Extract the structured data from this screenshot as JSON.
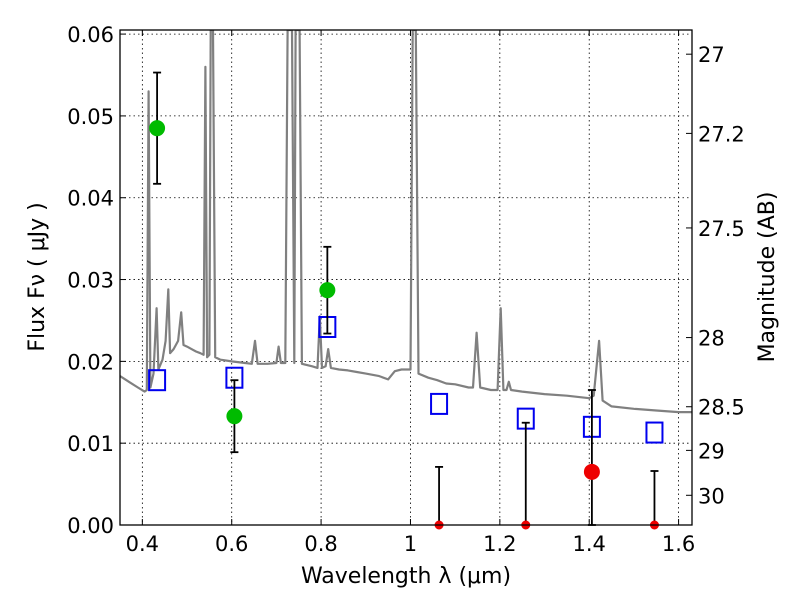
{
  "chart_data": {
    "type": "scatter",
    "title": "",
    "xlabel": "Wavelength  λ (μm)",
    "ylabel": "Flux  Fν  ( μJy )",
    "ylabel_right": "Magnitude (AB)",
    "xlim": [
      0.35,
      1.63
    ],
    "ylim": [
      0,
      0.0605
    ],
    "grid": true,
    "x_ticks": [
      {
        "value": 0.4,
        "label": "0.4"
      },
      {
        "value": 0.6,
        "label": "0.6"
      },
      {
        "value": 0.8,
        "label": "0.8"
      },
      {
        "value": 1.0,
        "label": "1"
      },
      {
        "value": 1.2,
        "label": "1.2"
      },
      {
        "value": 1.4,
        "label": "1.4"
      },
      {
        "value": 1.6,
        "label": "1.6"
      }
    ],
    "y_ticks": [
      {
        "value": 0.0,
        "label": "0.00"
      },
      {
        "value": 0.01,
        "label": "0.01"
      },
      {
        "value": 0.02,
        "label": "0.02"
      },
      {
        "value": 0.03,
        "label": "0.03"
      },
      {
        "value": 0.04,
        "label": "0.04"
      },
      {
        "value": 0.05,
        "label": "0.05"
      },
      {
        "value": 0.06,
        "label": "0.06"
      }
    ],
    "right_ticks": [
      {
        "mag": 27,
        "label": "27"
      },
      {
        "mag": 27.2,
        "label": "27.2"
      },
      {
        "mag": 27.5,
        "label": "27.5"
      },
      {
        "mag": 28,
        "label": "28"
      },
      {
        "mag": 28.5,
        "label": "28.5"
      },
      {
        "mag": 29,
        "label": "29"
      },
      {
        "mag": 30,
        "label": "30"
      }
    ],
    "colors": {
      "model": "#808080",
      "detection": "#00bb00",
      "upper_limit": "#ee0000",
      "model_photometry": "#0000ee",
      "errorbar": "#000000"
    },
    "model_spectrum": [
      [
        0.35,
        0.0182
      ],
      [
        0.37,
        0.0175
      ],
      [
        0.39,
        0.0168
      ],
      [
        0.405,
        0.0163
      ],
      [
        0.41,
        0.0165
      ],
      [
        0.414,
        0.053
      ],
      [
        0.418,
        0.0168
      ],
      [
        0.425,
        0.0185
      ],
      [
        0.432,
        0.0265
      ],
      [
        0.436,
        0.019
      ],
      [
        0.445,
        0.0202
      ],
      [
        0.452,
        0.0225
      ],
      [
        0.458,
        0.0288
      ],
      [
        0.462,
        0.021
      ],
      [
        0.47,
        0.0215
      ],
      [
        0.48,
        0.0225
      ],
      [
        0.487,
        0.026
      ],
      [
        0.492,
        0.022
      ],
      [
        0.5,
        0.0218
      ],
      [
        0.51,
        0.0215
      ],
      [
        0.52,
        0.0212
      ],
      [
        0.53,
        0.021
      ],
      [
        0.537,
        0.0208
      ],
      [
        0.541,
        0.056
      ],
      [
        0.545,
        0.0205
      ],
      [
        0.55,
        0.0208
      ],
      [
        0.553,
        0.0605
      ],
      [
        0.558,
        0.0605
      ],
      [
        0.563,
        0.0205
      ],
      [
        0.575,
        0.0202
      ],
      [
        0.6,
        0.02
      ],
      [
        0.63,
        0.0198
      ],
      [
        0.645,
        0.0197
      ],
      [
        0.652,
        0.0225
      ],
      [
        0.658,
        0.0197
      ],
      [
        0.68,
        0.0197
      ],
      [
        0.7,
        0.0198
      ],
      [
        0.705,
        0.0218
      ],
      [
        0.71,
        0.0198
      ],
      [
        0.72,
        0.0198
      ],
      [
        0.725,
        0.0605
      ],
      [
        0.735,
        0.0605
      ],
      [
        0.74,
        0.0198
      ],
      [
        0.743,
        0.0605
      ],
      [
        0.752,
        0.0605
      ],
      [
        0.757,
        0.0197
      ],
      [
        0.78,
        0.0194
      ],
      [
        0.792,
        0.0192
      ],
      [
        0.797,
        0.0255
      ],
      [
        0.802,
        0.0192
      ],
      [
        0.81,
        0.0194
      ],
      [
        0.816,
        0.0215
      ],
      [
        0.822,
        0.0192
      ],
      [
        0.84,
        0.019
      ],
      [
        0.86,
        0.0189
      ],
      [
        0.88,
        0.0187
      ],
      [
        0.9,
        0.0185
      ],
      [
        0.93,
        0.0182
      ],
      [
        0.95,
        0.0178
      ],
      [
        0.965,
        0.0188
      ],
      [
        0.98,
        0.019
      ],
      [
        1.0,
        0.019
      ],
      [
        1.005,
        0.0605
      ],
      [
        1.012,
        0.0605
      ],
      [
        1.018,
        0.0185
      ],
      [
        1.04,
        0.018
      ],
      [
        1.06,
        0.0177
      ],
      [
        1.08,
        0.0173
      ],
      [
        1.1,
        0.0172
      ],
      [
        1.13,
        0.0168
      ],
      [
        1.14,
        0.0168
      ],
      [
        1.148,
        0.0235
      ],
      [
        1.156,
        0.0168
      ],
      [
        1.18,
        0.0165
      ],
      [
        1.195,
        0.0165
      ],
      [
        1.202,
        0.0265
      ],
      [
        1.208,
        0.0165
      ],
      [
        1.215,
        0.0165
      ],
      [
        1.22,
        0.0175
      ],
      [
        1.225,
        0.0165
      ],
      [
        1.25,
        0.0163
      ],
      [
        1.3,
        0.016
      ],
      [
        1.35,
        0.0158
      ],
      [
        1.4,
        0.0155
      ],
      [
        1.41,
        0.0158
      ],
      [
        1.422,
        0.0225
      ],
      [
        1.43,
        0.0152
      ],
      [
        1.45,
        0.0145
      ],
      [
        1.5,
        0.0142
      ],
      [
        1.55,
        0.014
      ],
      [
        1.6,
        0.0138
      ],
      [
        1.63,
        0.0138
      ]
    ],
    "detections": [
      {
        "x": 0.433,
        "y": 0.0485,
        "yerr": [
          0.0068,
          0.0068
        ]
      },
      {
        "x": 0.606,
        "y": 0.0133,
        "yerr": [
          0.0044,
          0.0044
        ]
      },
      {
        "x": 0.814,
        "y": 0.0287,
        "yerr": [
          0.0053,
          0.0053
        ]
      }
    ],
    "upper_limits": [
      {
        "x": 1.064,
        "y": 0.0,
        "yerr": [
          0.0,
          0.0071
        ]
      },
      {
        "x": 1.258,
        "y": 0.0,
        "yerr": [
          0.0,
          0.0125
        ]
      },
      {
        "x": 1.406,
        "y": 0.0065,
        "yerr": [
          0.0065,
          0.01
        ]
      },
      {
        "x": 1.546,
        "y": 0.0,
        "yerr": [
          0.0,
          0.0066
        ]
      }
    ],
    "model_photometry": [
      {
        "x": 0.433,
        "y": 0.0177
      },
      {
        "x": 0.606,
        "y": 0.018
      },
      {
        "x": 0.814,
        "y": 0.0242
      },
      {
        "x": 1.064,
        "y": 0.0148
      },
      {
        "x": 1.258,
        "y": 0.013
      },
      {
        "x": 1.406,
        "y": 0.012
      },
      {
        "x": 1.546,
        "y": 0.0113
      }
    ]
  }
}
